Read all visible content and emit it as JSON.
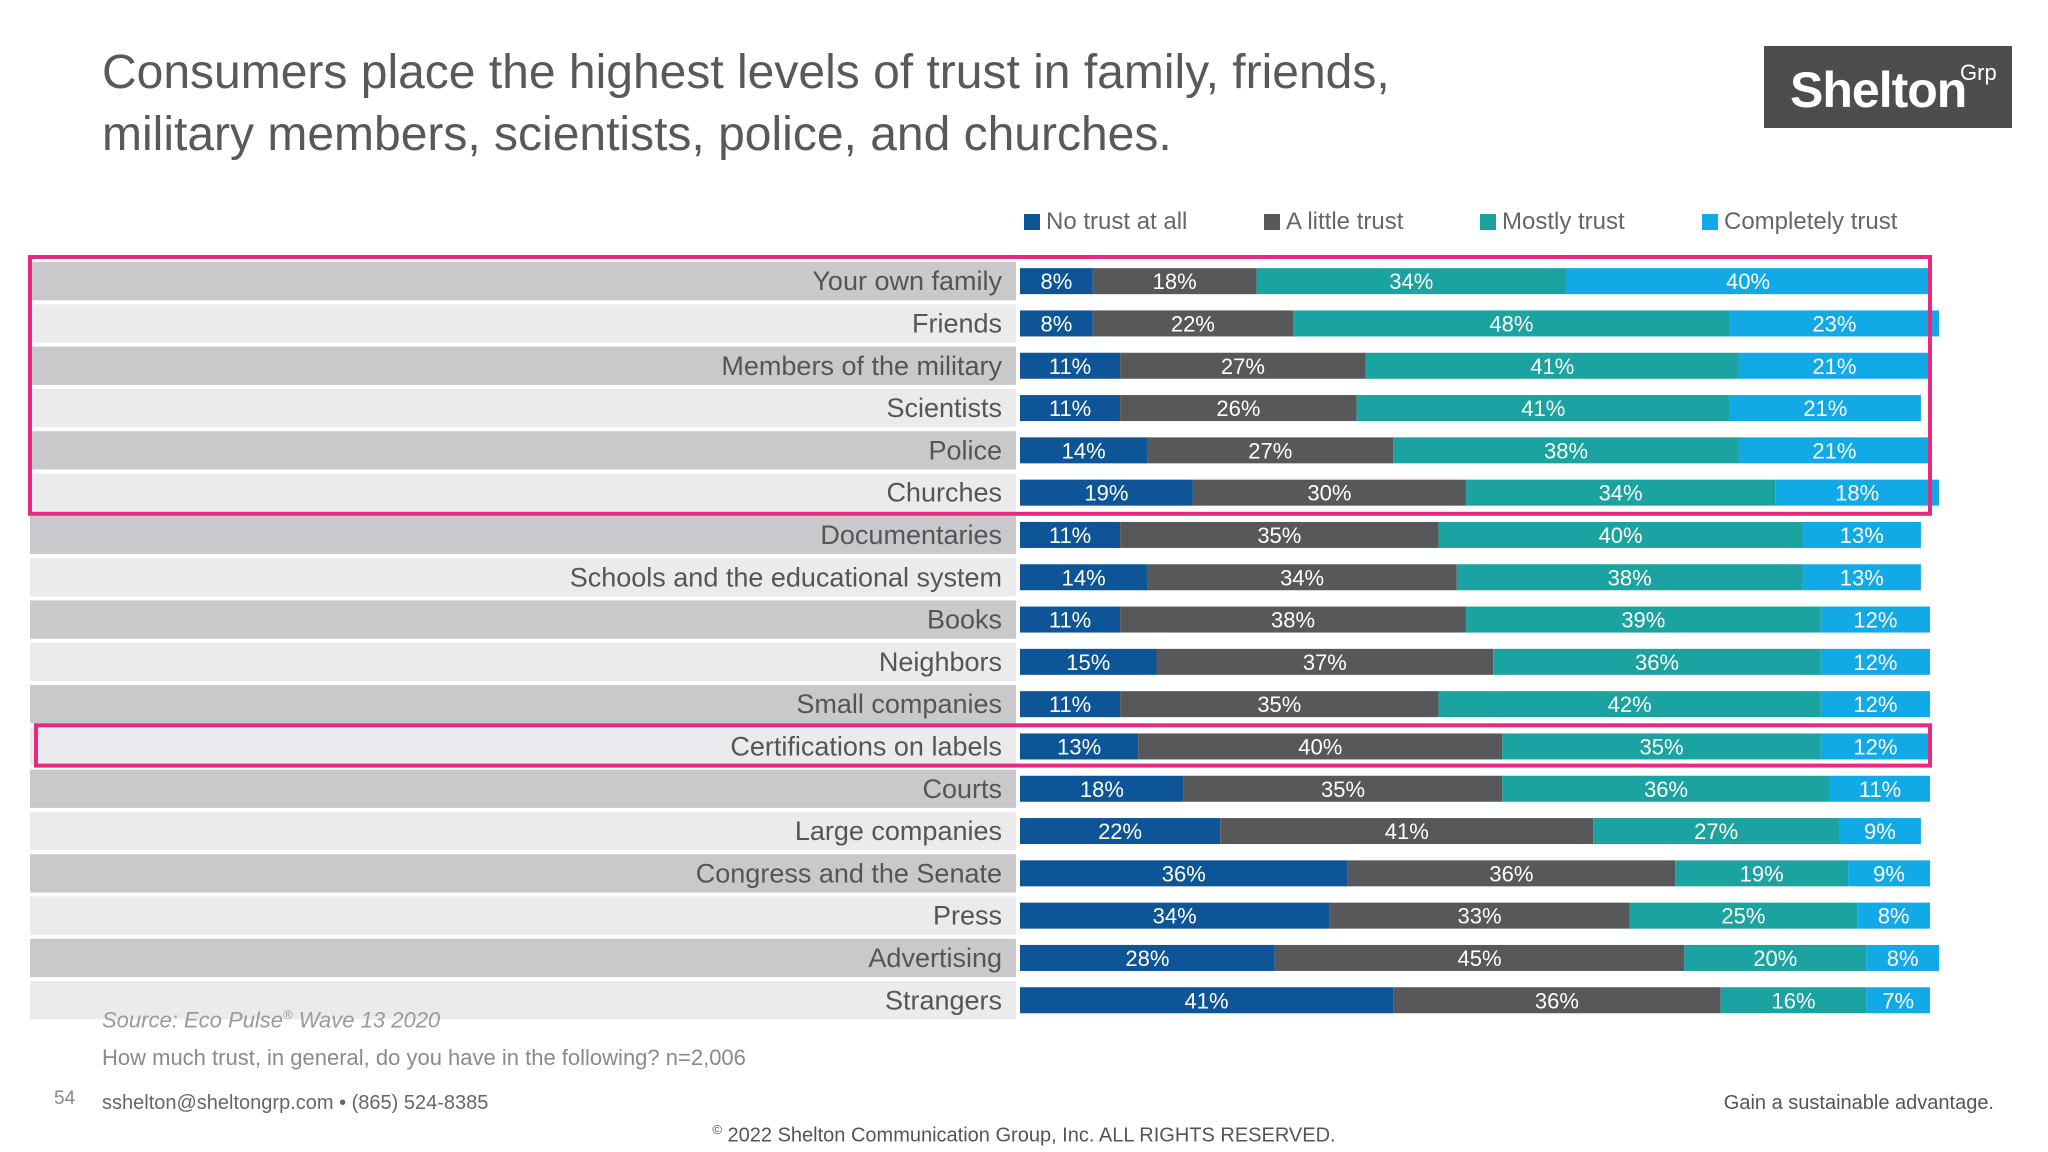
{
  "title": {
    "line1": "Consumers place the highest levels of trust in family, friends,",
    "line2": "military members, scientists, police, and churches."
  },
  "logo": {
    "main": "Shelton",
    "sup": "Grp"
  },
  "colors": {
    "no_trust": "#0d5596",
    "little_trust": "#58585a",
    "mostly_trust": "#1aa3a0",
    "completely_trust": "#11a9e6",
    "highlight": "#e8297f",
    "row_dark": "#c9c9cb",
    "row_light": "#ebebed"
  },
  "chart_data": {
    "type": "bar",
    "orientation": "horizontal",
    "stacked": true,
    "percent_stacked": true,
    "title": "Consumers place the highest levels of trust in family, friends, military members, scientists, police, and churches.",
    "legend_position": "top",
    "categories": [
      "Your own family",
      "Friends",
      "Members of the military",
      "Scientists",
      "Police",
      "Churches",
      "Documentaries",
      "Schools and the educational system",
      "Books",
      "Neighbors",
      "Small companies",
      "Certifications on labels",
      "Courts",
      "Large companies",
      "Congress and the Senate",
      "Press",
      "Advertising",
      "Strangers"
    ],
    "series": [
      {
        "name": "No trust at all",
        "values": [
          8,
          8,
          11,
          11,
          14,
          19,
          11,
          14,
          11,
          15,
          11,
          13,
          18,
          22,
          36,
          34,
          28,
          41
        ]
      },
      {
        "name": "A little trust",
        "values": [
          18,
          22,
          27,
          26,
          27,
          30,
          35,
          34,
          38,
          37,
          35,
          40,
          35,
          41,
          36,
          33,
          45,
          36
        ]
      },
      {
        "name": "Mostly trust",
        "values": [
          34,
          48,
          41,
          41,
          38,
          34,
          40,
          38,
          39,
          36,
          42,
          35,
          36,
          27,
          19,
          25,
          20,
          16
        ]
      },
      {
        "name": "Completely trust",
        "values": [
          40,
          23,
          21,
          21,
          21,
          18,
          13,
          13,
          12,
          12,
          12,
          12,
          11,
          9,
          9,
          8,
          8,
          7
        ]
      }
    ],
    "highlighted_groups": [
      [
        "Your own family",
        "Friends",
        "Members of the military",
        "Scientists",
        "Police",
        "Churches"
      ],
      [
        "Certifications on labels"
      ]
    ],
    "xlim": [
      0,
      100
    ]
  },
  "source": {
    "prefix": "Source: Eco Pulse",
    "reg": "®",
    "suffix": " Wave 13 2020"
  },
  "question": "How much trust, in general, do you have in the following? n=2,006",
  "footer": {
    "page_number": "54",
    "contact": "sshelton@sheltongrp.com • (865) 524-8385",
    "tagline": "Gain a sustainable advantage.",
    "copyright_symbol": "©",
    "copyright_text": " 2022 Shelton Communication Group, Inc.  ALL RIGHTS RESERVED."
  }
}
